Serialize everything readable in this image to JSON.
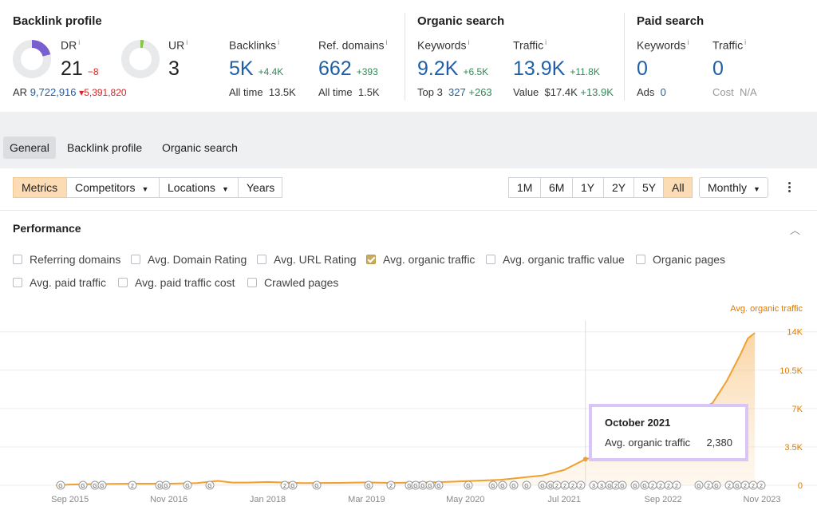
{
  "backlink_profile": {
    "title": "Backlink profile",
    "dr": {
      "label": "DR",
      "value": "21",
      "delta": "−8",
      "ring_fraction": 0.21
    },
    "ur": {
      "label": "UR",
      "value": "3",
      "ring_fraction": 0.03
    },
    "ar": {
      "label": "AR",
      "value": "9,722,916",
      "delta": "5,391,820"
    },
    "backlinks": {
      "label": "Backlinks",
      "value": "5K",
      "delta": "+4.4K",
      "sub_label": "All time",
      "sub_value": "13.5K"
    },
    "ref_domains": {
      "label": "Ref. domains",
      "value": "662",
      "delta": "+393",
      "sub_label": "All time",
      "sub_value": "1.5K"
    }
  },
  "organic_search": {
    "title": "Organic search",
    "keywords": {
      "label": "Keywords",
      "value": "9.2K",
      "delta": "+6.5K",
      "sub_label": "Top 3",
      "sub_value": "327",
      "sub_delta": "+263"
    },
    "traffic": {
      "label": "Traffic",
      "value": "13.9K",
      "delta": "+11.8K",
      "sub_label": "Value",
      "sub_value": "$17.4K",
      "sub_delta": "+13.9K"
    }
  },
  "paid_search": {
    "title": "Paid search",
    "keywords": {
      "label": "Keywords",
      "value": "0",
      "sub_label": "Ads",
      "sub_value": "0"
    },
    "traffic": {
      "label": "Traffic",
      "value": "0",
      "sub_label": "Cost",
      "sub_value": "N/A"
    }
  },
  "nav_tabs": [
    "General",
    "Backlink profile",
    "Organic search"
  ],
  "toolbar": {
    "metrics": "Metrics",
    "competitors": "Competitors",
    "locations": "Locations",
    "years": "Years",
    "ranges": [
      "1M",
      "6M",
      "1Y",
      "2Y",
      "5Y",
      "All"
    ],
    "interval": "Monthly"
  },
  "performance": {
    "title": "Performance",
    "checkboxes": [
      {
        "label": "Referring domains",
        "checked": false
      },
      {
        "label": "Avg. Domain Rating",
        "checked": false
      },
      {
        "label": "Avg. URL Rating",
        "checked": false
      },
      {
        "label": "Avg. organic traffic",
        "checked": true
      },
      {
        "label": "Avg. organic traffic value",
        "checked": false
      },
      {
        "label": "Organic pages",
        "checked": false
      },
      {
        "label": "Avg. paid traffic",
        "checked": false
      },
      {
        "label": "Avg. paid traffic cost",
        "checked": false
      },
      {
        "label": "Crawled pages",
        "checked": false
      }
    ]
  },
  "chart_data": {
    "type": "area",
    "series": [
      {
        "name": "Avg. organic traffic",
        "color": "#f0a030",
        "x": [
          "2015-07",
          "2015-09",
          "2016-01",
          "2016-06",
          "2016-11",
          "2017-03",
          "2017-06",
          "2017-08",
          "2017-10",
          "2018-01",
          "2018-06",
          "2018-11",
          "2019-03",
          "2019-06",
          "2019-10",
          "2020-02",
          "2020-06",
          "2020-10",
          "2021-01",
          "2021-04",
          "2021-07",
          "2021-10",
          "2021-12",
          "2022-02",
          "2022-04",
          "2022-06",
          "2022-08",
          "2022-10",
          "2022-12",
          "2023-02",
          "2023-04",
          "2023-06",
          "2023-08",
          "2023-09",
          "2023-10"
        ],
        "values": [
          0,
          60,
          120,
          150,
          150,
          200,
          400,
          250,
          250,
          300,
          200,
          220,
          260,
          220,
          240,
          300,
          400,
          500,
          700,
          900,
          1400,
          2380,
          2700,
          3400,
          3800,
          4600,
          5200,
          5400,
          6200,
          6900,
          7500,
          9500,
          12000,
          13400,
          13900
        ]
      }
    ],
    "x_tick_labels": [
      "Sep 2015",
      "Nov 2016",
      "Jan 2018",
      "Mar 2019",
      "May 2020",
      "Jul 2021",
      "Sep 2022",
      "Nov 2023"
    ],
    "y_tick_labels": [
      "0",
      "3.5K",
      "7K",
      "10.5K",
      "14K"
    ],
    "ylim": [
      0,
      15000
    ],
    "legend": "Avg. organic traffic",
    "legend_position": "top-right",
    "grid": true,
    "tooltip": {
      "title": "October 2021",
      "label": "Avg. organic traffic",
      "value": "2,380"
    }
  }
}
